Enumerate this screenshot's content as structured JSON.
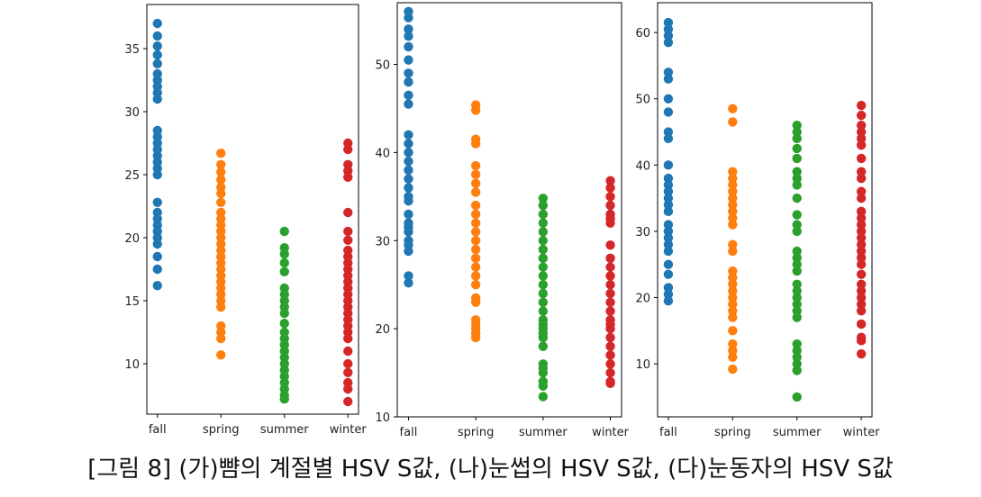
{
  "caption": "[그림 8] (가)뺨의 계절별 HSV S값, (나)눈썹의 HSV S값, (다)눈동자의 HSV S값",
  "colors": {
    "fall": "#1f77b4",
    "spring": "#ff7f0e",
    "summer": "#2ca02c",
    "winter": "#d62728"
  },
  "chart_data": [
    {
      "type": "scatter",
      "panel": "(가)",
      "title": "",
      "xlabel": "",
      "ylabel": "",
      "categories": [
        "fall",
        "spring",
        "summer",
        "winter"
      ],
      "yticks": [
        10,
        15,
        20,
        25,
        30,
        35
      ],
      "ylim": [
        6,
        38.5
      ],
      "series": [
        {
          "name": "fall",
          "values": [
            37,
            36,
            35.2,
            34.5,
            33.8,
            33,
            32.5,
            32,
            31.5,
            31,
            28.5,
            28,
            27.5,
            27,
            26.5,
            26,
            25.5,
            25,
            22.8,
            22,
            21.5,
            21,
            20.5,
            20,
            19.5,
            18.5,
            17.5,
            16.2
          ]
        },
        {
          "name": "spring",
          "values": [
            26.7,
            25.8,
            25.2,
            24.6,
            24,
            23.5,
            22.8,
            22,
            21.5,
            21,
            20.5,
            20,
            19.5,
            19,
            18.5,
            18,
            17.5,
            17,
            16.5,
            16,
            15.5,
            15,
            14.5,
            13,
            12.5,
            12,
            10.7
          ]
        },
        {
          "name": "summer",
          "values": [
            20.5,
            19.2,
            18.7,
            18,
            17.3,
            16,
            15.5,
            15,
            14.5,
            14,
            13.2,
            12.5,
            12,
            11.5,
            11,
            10.5,
            10,
            9.5,
            9,
            8.5,
            8,
            7.5,
            7.2
          ]
        },
        {
          "name": "winter",
          "values": [
            27.5,
            27,
            25.8,
            25.3,
            24.8,
            22,
            20.5,
            19.8,
            19,
            18.5,
            18,
            17.5,
            17,
            16.5,
            16,
            15.5,
            15,
            14.5,
            14,
            13.5,
            13,
            12.5,
            12,
            11,
            10,
            9.3,
            8.5,
            8,
            7
          ]
        }
      ]
    },
    {
      "type": "scatter",
      "panel": "(나)",
      "title": "",
      "xlabel": "",
      "ylabel": "",
      "categories": [
        "fall",
        "spring",
        "summer",
        "winter"
      ],
      "yticks": [
        10,
        20,
        30,
        40,
        50
      ],
      "ylim": [
        10,
        57
      ],
      "series": [
        {
          "name": "fall",
          "values": [
            56,
            55.3,
            54,
            53.2,
            52,
            50.5,
            49,
            48,
            46.5,
            45.5,
            42,
            41,
            40,
            39,
            38,
            37,
            36,
            35,
            34.5,
            33,
            32,
            31.5,
            31,
            30,
            29.5,
            28.8,
            26,
            25.2
          ]
        },
        {
          "name": "spring",
          "values": [
            45.4,
            44.8,
            41.5,
            41,
            38.5,
            37.5,
            36.5,
            35.5,
            34,
            33,
            32,
            31,
            30,
            29,
            28,
            27,
            26,
            25,
            23.5,
            23,
            21,
            20.5,
            20,
            19.5,
            19
          ]
        },
        {
          "name": "summer",
          "values": [
            34.8,
            34,
            33,
            32,
            31,
            30,
            29,
            28,
            27,
            26,
            25,
            24,
            23,
            22,
            21,
            20.5,
            20,
            19.5,
            19,
            18,
            16,
            15.5,
            15,
            14,
            13.5,
            12.3
          ]
        },
        {
          "name": "winter",
          "values": [
            36.8,
            36,
            35,
            34,
            33,
            32.5,
            32,
            29.5,
            28,
            27,
            26,
            25,
            24,
            23,
            22,
            21,
            20.5,
            20,
            19,
            18,
            17,
            16,
            15,
            14,
            13.8
          ]
        }
      ]
    },
    {
      "type": "scatter",
      "panel": "(다)",
      "title": "",
      "xlabel": "",
      "ylabel": "",
      "categories": [
        "fall",
        "spring",
        "summer",
        "winter"
      ],
      "yticks": [
        10,
        20,
        30,
        40,
        50,
        60
      ],
      "ylim": [
        2,
        64.5
      ],
      "series": [
        {
          "name": "fall",
          "values": [
            61.5,
            60.5,
            59.5,
            58.5,
            54,
            53,
            50,
            48,
            45,
            44,
            40,
            38,
            37,
            36,
            35,
            34,
            33,
            31,
            30,
            29,
            28,
            27,
            25,
            23.5,
            21.5,
            20.5,
            19.5
          ]
        },
        {
          "name": "spring",
          "values": [
            48.5,
            46.5,
            39,
            38,
            37,
            36,
            35,
            34,
            33,
            32,
            31,
            28,
            27,
            24,
            23,
            22,
            21,
            20,
            19,
            18,
            17,
            15,
            13,
            12,
            11,
            9.2
          ]
        },
        {
          "name": "summer",
          "values": [
            46,
            45,
            44,
            42.5,
            41,
            39,
            38,
            37,
            35,
            32.5,
            31,
            30,
            27,
            26,
            25,
            24,
            22,
            21,
            20,
            19,
            18,
            17,
            13,
            12,
            11,
            10,
            9,
            5
          ]
        },
        {
          "name": "winter",
          "values": [
            49,
            47.5,
            46,
            45,
            44,
            43,
            41,
            39,
            38,
            36,
            35,
            33,
            32,
            31,
            30,
            29,
            28,
            27,
            26,
            25,
            23.5,
            22,
            21,
            20,
            19,
            18,
            16,
            14,
            13.5,
            11.5
          ]
        }
      ]
    }
  ]
}
